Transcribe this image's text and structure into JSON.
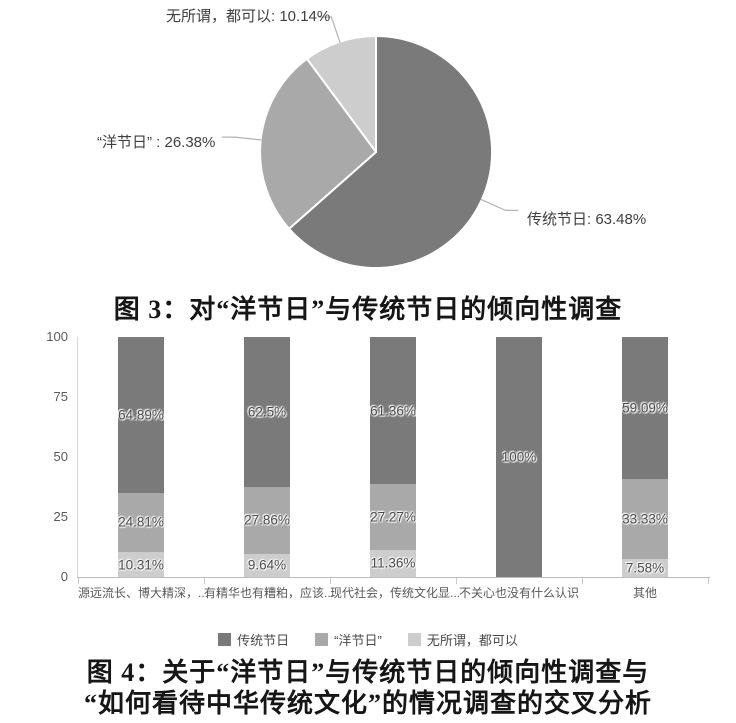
{
  "captions": {
    "fig3": "图 3：对“洋节日”与传统节日的倾向性调查",
    "fig4_line1": "图 4：关于“洋节日”与传统节日的倾向性调查与",
    "fig4_line2": "“如何看待中华传统文化”的情况调查的交叉分析"
  },
  "colors": {
    "traditional_dark": "#7a7a7a",
    "western_medium": "#a9a9a9",
    "indifferent_light": "#cdcdcd",
    "axis_line": "#d6d6d6",
    "axis_text": "#595959"
  },
  "chart_data": [
    {
      "type": "pie",
      "title": "图 3：对“洋节日”与传统节日的倾向性调查",
      "start_angle": "top",
      "direction": "clockwise",
      "slices": [
        {
          "name": "传统节日",
          "value": 63.48,
          "label": "传统节日: 63.48%",
          "color": "#7a7a7a"
        },
        {
          "name": "“洋节日”",
          "value": 26.38,
          "label": "“洋节日” : 26.38%",
          "color": "#a9a9a9"
        },
        {
          "name": "无所谓，都可以",
          "value": 10.14,
          "label": "无所谓，都可以: 10.14%",
          "color": "#cdcdcd"
        }
      ]
    },
    {
      "type": "bar",
      "stacked": true,
      "title": "图 4：关于“洋节日”与传统节日的倾向性调查与“如何看待中华传统文化”的情况调查的交叉分析",
      "ylim": [
        0,
        100
      ],
      "yticks": [
        0,
        25,
        50,
        75,
        100
      ],
      "grid": false,
      "legend_position": "bottom",
      "categories": [
        "源远流长、博大精深，...",
        "有精华也有糟粕，应该...",
        "现代社会，传统文化显...",
        "不关心也没有什么认识",
        "其他"
      ],
      "series": [
        {
          "name": "传统节日",
          "color": "#7a7a7a",
          "values": [
            64.89,
            62.5,
            61.36,
            100,
            59.09
          ],
          "labels": [
            "64.89%",
            "62.5%",
            "61.36%",
            "100%",
            "59.09%"
          ]
        },
        {
          "name": "“洋节日”",
          "color": "#a9a9a9",
          "values": [
            24.81,
            27.86,
            27.27,
            0,
            33.33
          ],
          "labels": [
            "24.81%",
            "27.86%",
            "27.27%",
            "",
            "33.33%"
          ]
        },
        {
          "name": "无所谓，都可以",
          "color": "#cdcdcd",
          "values": [
            10.31,
            9.64,
            11.36,
            0,
            7.58
          ],
          "labels": [
            "10.31%",
            "9.64%",
            "11.36%",
            "",
            "7.58%"
          ]
        }
      ]
    }
  ]
}
